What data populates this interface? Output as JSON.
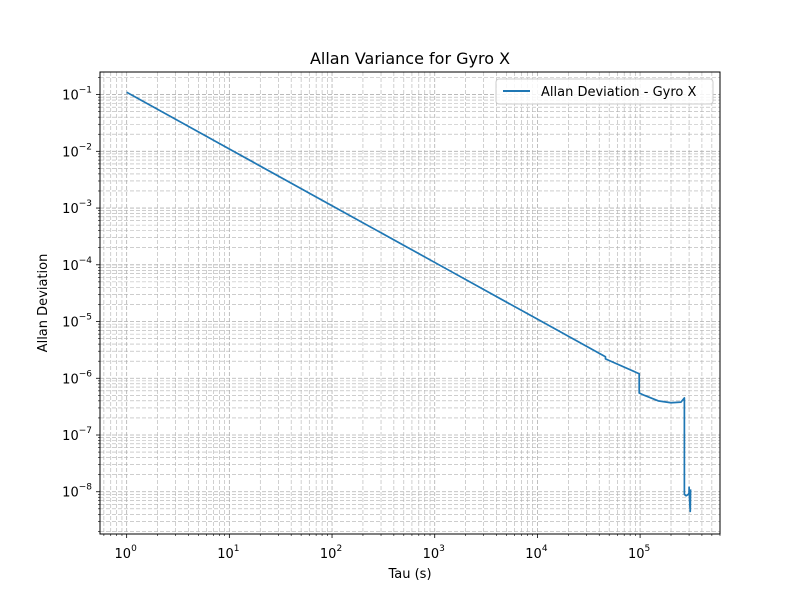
{
  "chart_data": {
    "type": "line",
    "title": "Allan Variance for Gyro X",
    "xlabel": "Tau (s)",
    "ylabel": "Allan Deviation",
    "xscale": "log",
    "yscale": "log",
    "xlim": [
      0.55,
      600000
    ],
    "ylim": [
      1.8e-09,
      0.25
    ],
    "x_ticks": [
      1,
      10,
      100,
      1000,
      10000,
      100000
    ],
    "y_ticks": [
      1e-08,
      1e-07,
      1e-06,
      1e-05,
      0.0001,
      0.001,
      0.01,
      0.1
    ],
    "grid": true,
    "grid_which": "both",
    "grid_style": "dashed",
    "legend_position": "top-right",
    "series": [
      {
        "name": "Allan Deviation - Gyro X",
        "color": "#1f77b4",
        "x": [
          1,
          10,
          100,
          1000,
          10000,
          46000,
          46000,
          98000,
          98000,
          110000,
          150000,
          200000,
          250000,
          270000,
          270000,
          280000,
          295000,
          300000,
          300000,
          305000,
          308000,
          310000
        ],
        "y": [
          0.11,
          0.011,
          0.0011,
          0.00011,
          1.1e-05,
          2.4e-06,
          2.2e-06,
          1.2e-06,
          5.5e-07,
          5e-07,
          4e-07,
          3.7e-07,
          3.8e-07,
          4.5e-07,
          9e-09,
          8.5e-09,
          9e-09,
          9.5e-09,
          1.2e-08,
          6e-09,
          4.5e-09,
          1.1e-08
        ]
      }
    ]
  }
}
